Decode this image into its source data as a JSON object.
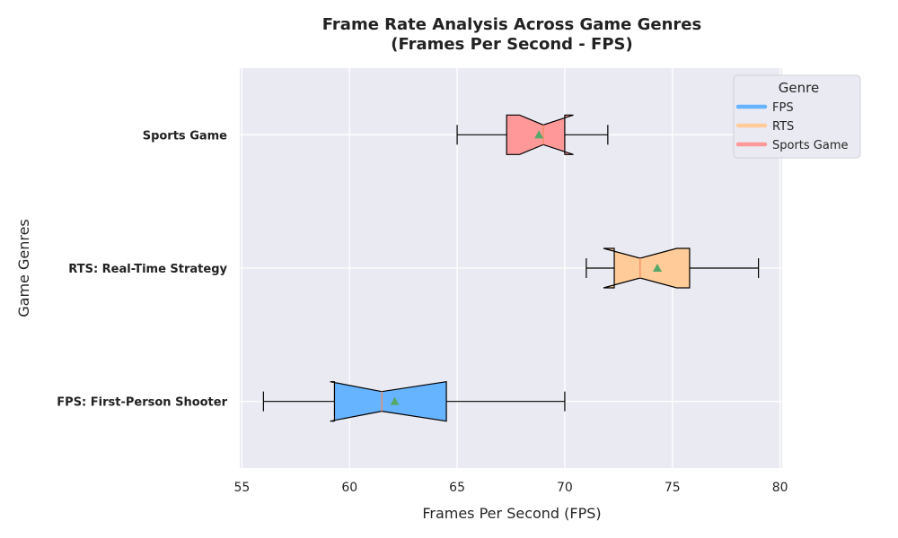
{
  "chart_data": {
    "type": "boxplot",
    "orientation": "horizontal",
    "title_line1": "Frame Rate Analysis Across Game Genres",
    "title_line2": "(Frames Per Second - FPS)",
    "xlabel": "Frames Per Second (FPS)",
    "ylabel": "Game Genres",
    "xlim": [
      54.9,
      80.1
    ],
    "xticks": [
      55,
      60,
      65,
      70,
      75,
      80
    ],
    "grid": true,
    "notched": true,
    "show_means": true,
    "categories": [
      "FPS: First-Person Shooter",
      "RTS: Real-Time Strategy",
      "Sports Game"
    ],
    "series": [
      {
        "category": "FPS: First-Person Shooter",
        "whisker_low": 56,
        "q1": 59.3,
        "median": 61.5,
        "q3": 64.5,
        "whisker_high": 70,
        "notch_low": 59.1,
        "notch_high": 64.5,
        "mean": 62.1,
        "color": "#66b3ff",
        "median_color": "#f28e63"
      },
      {
        "category": "RTS: Real-Time Strategy",
        "whisker_low": 71,
        "q1": 72.3,
        "median": 73.5,
        "q3": 75.8,
        "whisker_high": 79,
        "notch_low": 71.8,
        "notch_high": 75.2,
        "mean": 74.3,
        "color": "#ffcc99",
        "median_color": "#f28e63"
      },
      {
        "category": "Sports Game",
        "whisker_low": 65,
        "q1": 67.3,
        "median": 69.0,
        "q3": 70.0,
        "whisker_high": 72,
        "notch_low": 67.9,
        "notch_high": 70.4,
        "mean": 68.8,
        "color": "#ff9999",
        "median_color": "#f28e63"
      }
    ],
    "mean_marker_color": "#55a868",
    "legend": {
      "title": "Genre",
      "placement": "top-right",
      "entries": [
        {
          "label": "FPS",
          "color": "#66b3ff"
        },
        {
          "label": "RTS",
          "color": "#ffcc99"
        },
        {
          "label": "Sports Game",
          "color": "#ff9999"
        }
      ]
    },
    "plot_background": "#eaeaf2",
    "grid_color": "#ffffff"
  }
}
